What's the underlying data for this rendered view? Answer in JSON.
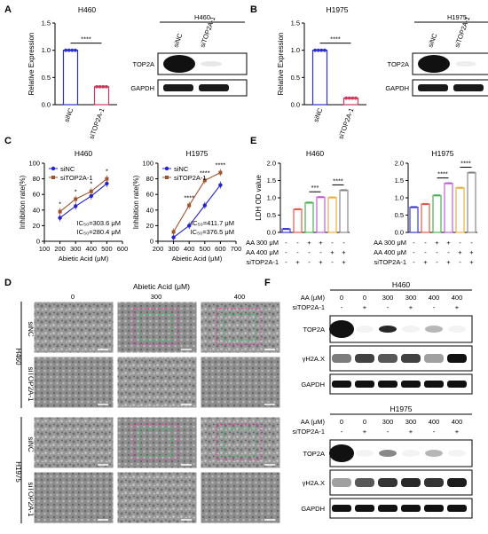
{
  "panels": {
    "A": {
      "letter": "A",
      "title": "H460",
      "bar": {
        "ylabel": "Relative Expression",
        "yticks": [
          "0.0",
          "0.5",
          "1.0",
          "1.5"
        ],
        "ylim": [
          0,
          1.5
        ],
        "categories": [
          "siNC",
          "siTOP2A-1"
        ],
        "values": [
          1.0,
          0.33
        ],
        "significance": "****",
        "colors": [
          "#2e2ecc",
          "#cc3a5c"
        ]
      },
      "blot": {
        "title": "H460",
        "lanes": [
          "siNC",
          "siTOP2A-1"
        ],
        "rows": [
          "TOP2A",
          "GAPDH"
        ]
      }
    },
    "B": {
      "letter": "B",
      "title": "H1975",
      "bar": {
        "ylabel": "Relative Expression",
        "yticks": [
          "0.0",
          "0.5",
          "1.0",
          "1.5"
        ],
        "ylim": [
          0,
          1.5
        ],
        "categories": [
          "siNC",
          "siTOP2A-1"
        ],
        "values": [
          1.0,
          0.12
        ],
        "significance": "****",
        "colors": [
          "#2e2ecc",
          "#cc3a5c"
        ]
      },
      "blot": {
        "title": "H1975",
        "lanes": [
          "siNC",
          "siTOP2A-1"
        ],
        "rows": [
          "TOP2A",
          "GAPDH"
        ]
      }
    },
    "C": {
      "letter": "C",
      "legend": [
        "siNC",
        "siTOP2A-1"
      ],
      "series_colors": [
        "#2222cc",
        "#a0522d"
      ],
      "left": {
        "title": "H460",
        "xlabel": "Abietic Acid (μM)",
        "ylabel": "Inhibition rate(%)",
        "xticks": [
          "100",
          "200",
          "300",
          "400",
          "500",
          "600"
        ],
        "yticks": [
          "0",
          "20",
          "40",
          "60",
          "80",
          "100"
        ],
        "xlim": [
          100,
          600
        ],
        "ylim": [
          0,
          100
        ],
        "x": [
          200,
          300,
          400,
          500
        ],
        "siNC": [
          30,
          45,
          58,
          74
        ],
        "siTOP2A": [
          38,
          54,
          64,
          80
        ],
        "ic50_1": "IC₅₀=303.6 μM",
        "ic50_2": "IC₅₀=280.4 μM",
        "stars": [
          "*",
          "*",
          "*",
          "*"
        ]
      },
      "right": {
        "title": "H1975",
        "xlabel": "Abietic Acid (μM)",
        "ylabel": "Inhibition rate(%)",
        "xticks": [
          "200",
          "300",
          "400",
          "500",
          "600",
          "700"
        ],
        "yticks": [
          "0",
          "20",
          "40",
          "60",
          "80",
          "100"
        ],
        "xlim": [
          200,
          700
        ],
        "ylim": [
          0,
          100
        ],
        "x": [
          300,
          400,
          500,
          600
        ],
        "siNC": [
          5,
          20,
          46,
          72
        ],
        "siTOP2A": [
          12,
          46,
          78,
          88
        ],
        "ic50_1": "IC₅₀=411.7 μM",
        "ic50_2": "IC₅₀=376.5 μM",
        "stars": [
          "****",
          "****",
          "****"
        ]
      }
    },
    "D": {
      "letter": "D",
      "header": "Abietic Acid (μM)",
      "columns": [
        "0",
        "300",
        "400"
      ],
      "cells": [
        "H460",
        "H1975"
      ],
      "rows": [
        "siNC",
        "siTOP2A-1",
        "siNC",
        "siTOP2A-1"
      ]
    },
    "E": {
      "letter": "E",
      "ylabel": "LDH OD value",
      "conditions": [
        {
          "label": "AA 300 μM",
          "signs": [
            "-",
            "-",
            "+",
            "+",
            "-",
            "-"
          ]
        },
        {
          "label": "AA 400 μM",
          "signs": [
            "-",
            "-",
            "-",
            "-",
            "+",
            "+"
          ]
        },
        {
          "label": "siTOP2A-1",
          "signs": [
            "-",
            "+",
            "-",
            "+",
            "-",
            "+"
          ]
        }
      ],
      "bar_colors": [
        "#3a3ad0",
        "#e05a4a",
        "#4caf50",
        "#c060d0",
        "#e8b040",
        "#888888"
      ],
      "left": {
        "title": "H460",
        "yticks": [
          "0.0",
          "0.5",
          "1.0",
          "1.5",
          "2.0"
        ],
        "ylim": [
          0,
          2.0
        ],
        "values": [
          0.1,
          0.67,
          0.86,
          1.02,
          1.01,
          1.22
        ],
        "stars": [
          "***",
          "****"
        ]
      },
      "right": {
        "title": "H1975",
        "yticks": [
          "0.0",
          "0.5",
          "1.0",
          "1.5",
          "2.0"
        ],
        "ylim": [
          0,
          2.0
        ],
        "values": [
          0.73,
          0.82,
          1.07,
          1.42,
          1.29,
          1.73
        ],
        "stars": [
          "****",
          "****"
        ]
      }
    },
    "F": {
      "letter": "F",
      "aa_label": "AA (μM)",
      "si_label": "siTOP2A-1",
      "aa_values": [
        "0",
        "0",
        "300",
        "300",
        "400",
        "400"
      ],
      "si_signs": [
        "-",
        "+",
        "-",
        "+",
        "-",
        "+"
      ],
      "blots": [
        {
          "title": "H460",
          "rows": [
            "TOP2A",
            "γH2A.X",
            "GAPDH"
          ]
        },
        {
          "title": "H1975",
          "rows": [
            "TOP2A",
            "γH2A.X",
            "GAPDH"
          ]
        }
      ]
    }
  }
}
